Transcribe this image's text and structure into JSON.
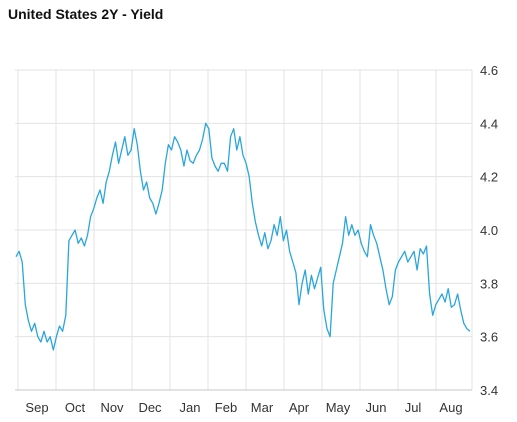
{
  "chart_data": {
    "type": "line",
    "title": "United States 2Y - Yield",
    "xlabel": "",
    "ylabel": "",
    "x_tick_labels": [
      "Sep",
      "Oct",
      "Nov",
      "Dec",
      "Jan",
      "Feb",
      "Mar",
      "Apr",
      "May",
      "Jun",
      "Jul",
      "Aug"
    ],
    "y_ticks": [
      "3.4",
      "3.6",
      "3.8",
      "4.0",
      "4.2",
      "4.4",
      "4.6"
    ],
    "ylim": [
      3.4,
      4.6
    ],
    "grid": true,
    "line_color": "#29a6dc",
    "series": [
      {
        "values": [
          3.9,
          3.92,
          3.88,
          3.72,
          3.66,
          3.62,
          3.65,
          3.6,
          3.58,
          3.62,
          3.58,
          3.6,
          3.55,
          3.6,
          3.64,
          3.62,
          3.68,
          3.96,
          3.98,
          4.0,
          3.95,
          3.97,
          3.94,
          3.98,
          4.05,
          4.08,
          4.12,
          4.15,
          4.1,
          4.18,
          4.22,
          4.28,
          4.33,
          4.25,
          4.3,
          4.35,
          4.28,
          4.3,
          4.38,
          4.32,
          4.22,
          4.15,
          4.18,
          4.12,
          4.1,
          4.06,
          4.1,
          4.15,
          4.25,
          4.32,
          4.3,
          4.35,
          4.33,
          4.3,
          4.24,
          4.3,
          4.26,
          4.25,
          4.28,
          4.3,
          4.34,
          4.4,
          4.38,
          4.27,
          4.24,
          4.22,
          4.25,
          4.25,
          4.22,
          4.35,
          4.38,
          4.3,
          4.35,
          4.28,
          4.25,
          4.2,
          4.1,
          4.03,
          3.98,
          3.94,
          3.99,
          3.93,
          3.96,
          4.02,
          3.98,
          4.05,
          3.96,
          4.0,
          3.92,
          3.88,
          3.84,
          3.72,
          3.8,
          3.85,
          3.76,
          3.83,
          3.78,
          3.82,
          3.86,
          3.7,
          3.63,
          3.6,
          3.8,
          3.85,
          3.9,
          3.95,
          4.05,
          3.98,
          4.02,
          3.98,
          4.0,
          3.95,
          3.92,
          3.9,
          4.02,
          3.98,
          3.95,
          3.9,
          3.85,
          3.78,
          3.72,
          3.75,
          3.85,
          3.88,
          3.9,
          3.92,
          3.88,
          3.9,
          3.92,
          3.85,
          3.93,
          3.91,
          3.94,
          3.76,
          3.68,
          3.72,
          3.74,
          3.76,
          3.73,
          3.78,
          3.71,
          3.72,
          3.76,
          3.7,
          3.65,
          3.63,
          3.62
        ]
      }
    ]
  }
}
